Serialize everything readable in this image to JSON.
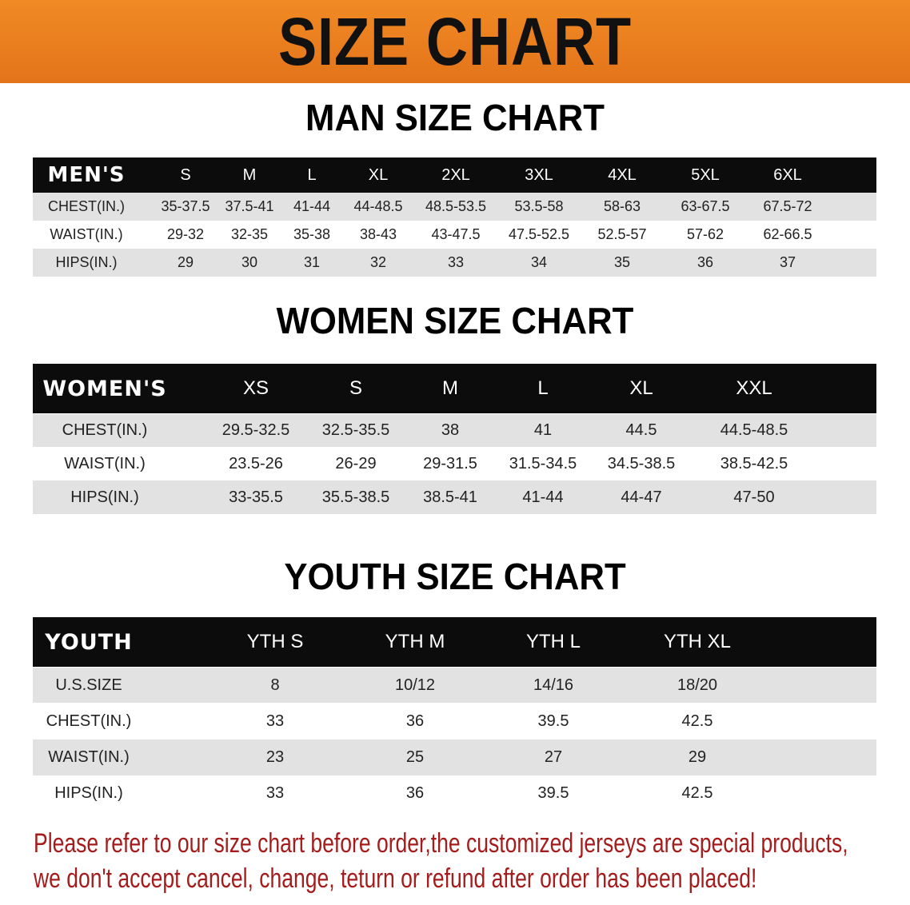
{
  "banner": {
    "title": "SIZE CHART",
    "color": "#e97b1c"
  },
  "men": {
    "title": "MAN SIZE CHART",
    "header": [
      "MEN'S",
      "S",
      "M",
      "L",
      "XL",
      "2XL",
      "3XL",
      "4XL",
      "5XL",
      "6XL"
    ],
    "rows": [
      [
        "CHEST(IN.)",
        "35-37.5",
        "37.5-41",
        "41-44",
        "44-48.5",
        "48.5-53.5",
        "53.5-58",
        "58-63",
        "63-67.5",
        "67.5-72"
      ],
      [
        "WAIST(IN.)",
        "29-32",
        "32-35",
        "35-38",
        "38-43",
        "43-47.5",
        "47.5-52.5",
        "52.5-57",
        "57-62",
        "62-66.5"
      ],
      [
        "HIPS(IN.)",
        "29",
        "30",
        "31",
        "32",
        "33",
        "34",
        "35",
        "36",
        "37"
      ]
    ]
  },
  "women": {
    "title": "WOMEN SIZE CHART",
    "header": [
      "WOMEN'S",
      "XS",
      "S",
      "M",
      "L",
      "XL",
      "XXL"
    ],
    "rows": [
      [
        "CHEST(IN.)",
        "29.5-32.5",
        "32.5-35.5",
        "38",
        "41",
        "44.5",
        "44.5-48.5"
      ],
      [
        "WAIST(IN.)",
        "23.5-26",
        "26-29",
        "29-31.5",
        "31.5-34.5",
        "34.5-38.5",
        "38.5-42.5"
      ],
      [
        "HIPS(IN.)",
        "33-35.5",
        "35.5-38.5",
        "38.5-41",
        "41-44",
        "44-47",
        "47-50"
      ]
    ]
  },
  "youth": {
    "title": "YOUTH SIZE CHART",
    "header": [
      "YOUTH",
      "YTH S",
      "YTH M",
      "YTH L",
      "YTH XL"
    ],
    "rows": [
      [
        "U.S.SIZE",
        "8",
        "10/12",
        "14/16",
        "18/20"
      ],
      [
        "CHEST(IN.)",
        "33",
        "36",
        "39.5",
        "42.5"
      ],
      [
        "WAIST(IN.)",
        "23",
        "25",
        "27",
        "29"
      ],
      [
        "HIPS(IN.)",
        "33",
        "36",
        "39.5",
        "42.5"
      ]
    ]
  },
  "note": {
    "line1": "Please refer to our size chart before order,the customized jerseys are special products,",
    "line2": "we don't accept cancel, change, teturn or refund after order has been placed!",
    "color": "#a41c1c"
  }
}
